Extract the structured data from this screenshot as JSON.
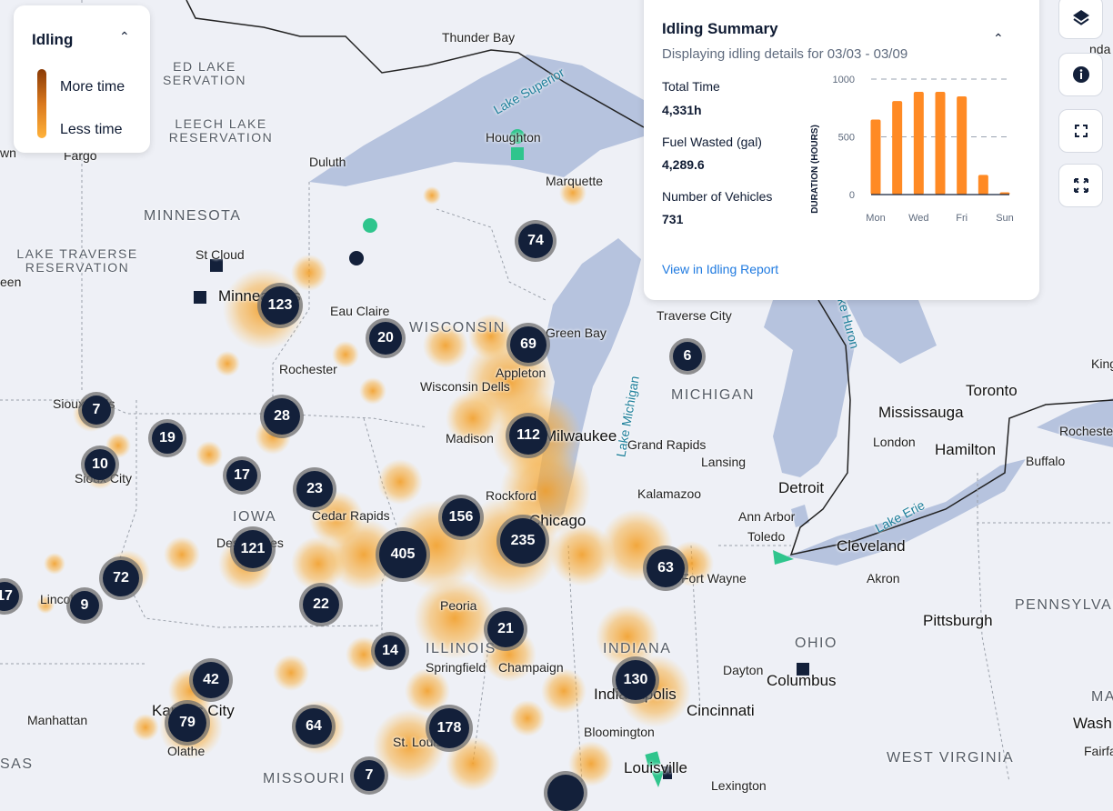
{
  "legend": {
    "title": "Idling",
    "more_label": "More time",
    "less_label": "Less time",
    "gradient_colors": [
      "#8a3a05",
      "#ffb23a"
    ]
  },
  "summary": {
    "title": "Idling Summary",
    "subtitle": "Displaying idling details for 03/03 - 03/09",
    "stats": [
      {
        "label": "Total Time",
        "value": "4,331h"
      },
      {
        "label": "Fuel Wasted (gal)",
        "value": "4,289.6"
      },
      {
        "label": "Number of Vehicles",
        "value": "731"
      }
    ],
    "link": "View in Idling Report",
    "chart_data": {
      "type": "bar",
      "categories": [
        "Mon",
        "Tue",
        "Wed",
        "Thu",
        "Fri",
        "Sat",
        "Sun"
      ],
      "tick_labels_x": [
        "Mon",
        "Wed",
        "Fri",
        "Sun"
      ],
      "values": [
        650,
        810,
        890,
        890,
        850,
        170,
        20
      ],
      "ylabel": "DURATION (HOURS)",
      "yticks": [
        0,
        500,
        1000
      ],
      "ylim": [
        0,
        1000
      ],
      "grid": "dashed horizontal",
      "color": "#ff8a24"
    }
  },
  "map_controls": [
    {
      "name": "layers-button",
      "icon": "layers-icon"
    },
    {
      "name": "info-button",
      "icon": "info-icon"
    },
    {
      "name": "fullscreen-button",
      "icon": "expand-icon"
    },
    {
      "name": "fit-bounds-button",
      "icon": "arrows-out-icon"
    }
  ],
  "clusters": [
    "74",
    "123",
    "20",
    "69",
    "6",
    "7",
    "28",
    "112",
    "19",
    "10",
    "17",
    "23",
    "156",
    "235",
    "121",
    "405",
    "63",
    "72",
    "17",
    "9",
    "22",
    "21",
    "14",
    "130",
    "42",
    "79",
    "64",
    "178",
    "7"
  ],
  "places": [
    "Thunder Bay",
    "Lake Superior",
    "Houghton",
    "Marquette",
    "Duluth",
    "Fargo",
    "MINNESOTA",
    "St Cloud",
    "LAKE TRAVERSE RESERVATION",
    "ED LAKE SERVATION",
    "LEECH LAKE RESERVATION",
    "Minneapolis",
    "Eau Claire",
    "WISCONSIN",
    "Green Bay",
    "Rochester",
    "Appleton",
    "Wisconsin Dells",
    "Lake Michigan",
    "Traverse City",
    "MICHIGAN",
    "Sioux Falls",
    "Sioux City",
    "Madison",
    "Milwaukee",
    "Grand Rapids",
    "Lansing",
    "Rockford",
    "Kalamazoo",
    "Detroit",
    "Ann Arbor",
    "IOWA",
    "Cedar Rapids",
    "Des Moines",
    "Chicago",
    "Peoria",
    "ILLINOIS",
    "Springfield",
    "Champaign",
    "INDIANA",
    "Indianapolis",
    "Fort Wayne",
    "Toledo",
    "Cleveland",
    "Akron",
    "Lake Erie",
    "Lake Huron",
    "Mississauga",
    "Toronto",
    "Hamilton",
    "Buffalo",
    "London",
    "Rochester",
    "King",
    "Pittsburgh",
    "PENNSYLVANIA",
    "OHIO",
    "Dayton",
    "Columbus",
    "Cincinnati",
    "Bloomington",
    "Louisville",
    "Lexington",
    "WEST VIRGINIA",
    "Kansas City",
    "Olathe",
    "Manhattan",
    "MISSOURI",
    "St. Louis",
    "SAS",
    "Lincoln",
    "MAR",
    "Wash",
    "Fairfa",
    "wn",
    "een",
    "nda"
  ]
}
